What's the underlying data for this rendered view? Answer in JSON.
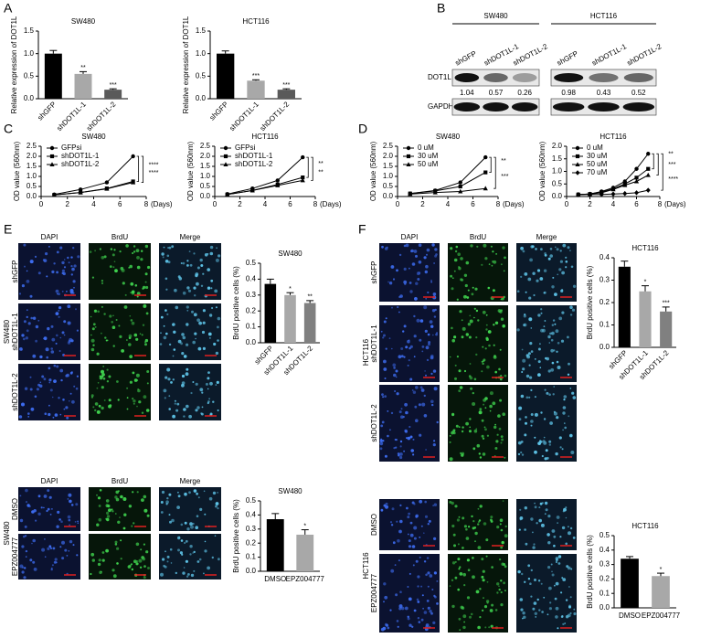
{
  "panels": [
    "A",
    "B",
    "C",
    "D",
    "E",
    "F"
  ],
  "chart_data": [
    {
      "type": "bar",
      "title": "SW480",
      "ylabel": "Relative expression of DOT1L",
      "categories": [
        "shGFP",
        "shDOT1L-1",
        "shDOT1L-2"
      ],
      "values": [
        1.0,
        0.55,
        0.2
      ],
      "errors": [
        0.07,
        0.05,
        0.02
      ],
      "colors": [
        "#000000",
        "#a8a8a8",
        "#5a5a5a"
      ],
      "annotations": [
        null,
        "**",
        "***"
      ],
      "ylim": [
        0,
        1.5
      ],
      "yticks": [
        {
          "value": 0,
          "label": "0.0"
        },
        0.5,
        {
          "value": 1,
          "label": "1.0"
        },
        1.5
      ]
    },
    {
      "type": "bar",
      "title": "HCT116",
      "ylabel": "Relative expression of DOT1L",
      "categories": [
        "shGFP",
        "shDOT1L-1",
        "shDOT1L-2"
      ],
      "values": [
        1.0,
        0.4,
        0.2
      ],
      "errors": [
        0.06,
        0.02,
        0.02
      ],
      "colors": [
        "#000000",
        "#a8a8a8",
        "#5a5a5a"
      ],
      "annotations": [
        null,
        "***",
        "***"
      ],
      "ylim": [
        0,
        1.5
      ],
      "yticks": [
        {
          "value": 0,
          "label": "0.0"
        },
        0.5,
        {
          "value": 1,
          "label": "1.0"
        },
        1.5
      ]
    },
    {
      "type": "line",
      "title": "SW480",
      "ylabel": "OD value (560nm)",
      "xlabel": "(Days)",
      "x": [
        1,
        3,
        5,
        7
      ],
      "xlim": [
        0,
        8
      ],
      "xticks": [
        0,
        2,
        4,
        6,
        8
      ],
      "ylim": [
        0,
        2.5
      ],
      "yticks": [
        {
          "value": 0,
          "label": "0.0"
        },
        0.5,
        {
          "value": 1,
          "label": "1.0"
        },
        1.5,
        {
          "value": 2,
          "label": "2.0"
        },
        2.5
      ],
      "series": [
        {
          "name": "GFPsi",
          "color": "#000000",
          "marker": "circle",
          "values": [
            0.1,
            0.35,
            0.7,
            2.0
          ]
        },
        {
          "name": "shDOT1L-1",
          "color": "#000000",
          "marker": "square",
          "values": [
            0.08,
            0.2,
            0.4,
            0.75
          ]
        },
        {
          "name": "shDOT1L-2",
          "color": "#000000",
          "marker": "triangle",
          "values": [
            0.08,
            0.2,
            0.38,
            0.7
          ]
        }
      ],
      "significance": [
        "****",
        "****"
      ]
    },
    {
      "type": "line",
      "title": "HCT116",
      "ylabel": "OD value (560nm)",
      "xlabel": "(Days)",
      "x": [
        1,
        3,
        5,
        7
      ],
      "xlim": [
        0,
        8
      ],
      "xticks": [
        0,
        2,
        4,
        6,
        8
      ],
      "ylim": [
        0,
        2.5
      ],
      "yticks": [
        {
          "value": 0,
          "label": "0.0"
        },
        0.5,
        {
          "value": 1,
          "label": "1.0"
        },
        1.5,
        {
          "value": 2,
          "label": "2.0"
        },
        2.5
      ],
      "series": [
        {
          "name": "GFPsi",
          "color": "#000000",
          "marker": "circle",
          "values": [
            0.12,
            0.4,
            0.8,
            1.95
          ]
        },
        {
          "name": "shDOT1L-1",
          "color": "#000000",
          "marker": "square",
          "values": [
            0.1,
            0.3,
            0.6,
            0.95
          ]
        },
        {
          "name": "shDOT1L-2",
          "color": "#000000",
          "marker": "triangle",
          "values": [
            0.1,
            0.3,
            0.55,
            0.8
          ]
        }
      ],
      "significance": [
        "**",
        "**"
      ]
    },
    {
      "type": "line",
      "title": "SW480",
      "ylabel": "OD value (560nm)",
      "xlabel": "(Days)",
      "x": [
        1,
        3,
        5,
        7
      ],
      "xlim": [
        0,
        8
      ],
      "xticks": [
        0,
        2,
        4,
        6,
        8
      ],
      "ylim": [
        0,
        2.5
      ],
      "yticks": [
        {
          "value": 0,
          "label": "0.0"
        },
        0.5,
        {
          "value": 1,
          "label": "1.0"
        },
        1.5,
        {
          "value": 2,
          "label": "2.0"
        },
        2.5
      ],
      "series": [
        {
          "name": "0 uM",
          "color": "#000000",
          "marker": "circle",
          "values": [
            0.15,
            0.3,
            0.7,
            1.95
          ]
        },
        {
          "name": "30 uM",
          "color": "#000000",
          "marker": "square",
          "values": [
            0.15,
            0.28,
            0.5,
            1.2
          ]
        },
        {
          "name": "50 uM",
          "color": "#000000",
          "marker": "triangle",
          "values": [
            0.12,
            0.2,
            0.25,
            0.4
          ]
        }
      ],
      "significance": [
        "**",
        "***"
      ]
    },
    {
      "type": "line",
      "title": "HCT116",
      "ylabel": "OD value (560nm)",
      "xlabel": "(Days)",
      "x": [
        1,
        2,
        3,
        4,
        5,
        6,
        7
      ],
      "xlim": [
        0,
        8
      ],
      "xticks": [
        0,
        2,
        4,
        6,
        8
      ],
      "ylim": [
        0,
        2.0
      ],
      "yticks": [
        {
          "value": 0,
          "label": "0.0"
        },
        0.5,
        {
          "value": 1,
          "label": "1.0"
        },
        1.5,
        {
          "value": 2,
          "label": "2.0"
        }
      ],
      "series": [
        {
          "name": "0 uM",
          "color": "#000000",
          "marker": "circle",
          "values": [
            0.08,
            0.1,
            0.2,
            0.35,
            0.6,
            1.1,
            1.7
          ]
        },
        {
          "name": "30 uM",
          "color": "#000000",
          "marker": "square",
          "values": [
            0.08,
            0.1,
            0.18,
            0.3,
            0.5,
            0.75,
            1.1
          ]
        },
        {
          "name": "50 uM",
          "color": "#000000",
          "marker": "triangle",
          "values": [
            0.08,
            0.1,
            0.15,
            0.28,
            0.45,
            0.6,
            0.85
          ]
        },
        {
          "name": "70 uM",
          "color": "#000000",
          "marker": "diamond",
          "values": [
            0.07,
            0.08,
            0.08,
            0.1,
            0.12,
            0.15,
            0.25
          ]
        }
      ],
      "significance": [
        "**",
        "***",
        "****"
      ]
    },
    {
      "type": "bar",
      "title": "SW480",
      "ylabel": "BrdU positive cells (%)",
      "categories": [
        "shGFP",
        "shDOT1L-1",
        "shDOT1L-2"
      ],
      "values": [
        0.37,
        0.3,
        0.25
      ],
      "errors": [
        0.03,
        0.015,
        0.015
      ],
      "colors": [
        "#000000",
        "#a8a8a8",
        "#808080"
      ],
      "annotations": [
        null,
        "*",
        "**"
      ],
      "ylim": [
        0,
        0.5
      ],
      "yticks": [
        {
          "value": 0,
          "label": "0.0"
        },
        0.1,
        0.2,
        0.3,
        0.4,
        0.5
      ]
    },
    {
      "type": "bar",
      "title": "SW480",
      "ylabel": "BrdU positive cells (%)",
      "categories": [
        "DMSO",
        "EPZ004777"
      ],
      "values": [
        0.37,
        0.26
      ],
      "errors": [
        0.04,
        0.035
      ],
      "colors": [
        "#000000",
        "#a8a8a8"
      ],
      "annotations": [
        null,
        "*"
      ],
      "ylim": [
        0,
        0.5
      ],
      "yticks": [
        {
          "value": 0,
          "label": "0.0"
        },
        0.1,
        0.2,
        0.3,
        0.4,
        0.5
      ]
    },
    {
      "type": "bar",
      "title": "HCT116",
      "ylabel": "BrdU positive cells (%)",
      "categories": [
        "shGFP",
        "shDOT1L-1",
        "shDOT1L-2"
      ],
      "values": [
        0.36,
        0.25,
        0.16
      ],
      "errors": [
        0.025,
        0.025,
        0.02
      ],
      "colors": [
        "#000000",
        "#a8a8a8",
        "#808080"
      ],
      "annotations": [
        null,
        "*",
        "***"
      ],
      "ylim": [
        0,
        0.4
      ],
      "yticks": [
        {
          "value": 0,
          "label": "0.0"
        },
        0.1,
        0.2,
        0.3,
        0.4
      ]
    },
    {
      "type": "bar",
      "title": "HCT116",
      "ylabel": "BrdU positive cells (%)",
      "categories": [
        "DMSO",
        "EPZ004777"
      ],
      "values": [
        0.34,
        0.22
      ],
      "errors": [
        0.015,
        0.02
      ],
      "colors": [
        "#000000",
        "#a8a8a8"
      ],
      "annotations": [
        null,
        "*"
      ],
      "ylim": [
        0,
        0.5
      ],
      "yticks": [
        {
          "value": 0,
          "label": "0.0"
        },
        0.1,
        0.2,
        0.3,
        0.4,
        0.5
      ]
    }
  ],
  "blot": {
    "proteins": [
      "DOT1L",
      "GAPDH"
    ],
    "cell_lines": [
      {
        "name": "SW480",
        "lanes": [
          "shGFP",
          "shDOT1L-1",
          "shDOT1L-2"
        ],
        "quantities": [
          1.04,
          0.57,
          0.26
        ]
      },
      {
        "name": "HCT116",
        "lanes": [
          "shGFP",
          "shDOT1L-1",
          "shDOT1L-2"
        ],
        "quantities": [
          0.98,
          0.43,
          0.52
        ]
      }
    ]
  },
  "micrographs": [
    {
      "channels": [
        "DAPI",
        "BrdU",
        "Merge"
      ],
      "cell_line": "SW480",
      "rows": [
        "shGFP",
        "shDOT1L-1",
        "shDOT1L-2"
      ]
    },
    {
      "channels": [
        "DAPI",
        "BrdU",
        "Merge"
      ],
      "cell_line": "SW480",
      "rows": [
        "DMSO",
        "EPZ004777"
      ]
    },
    {
      "channels": [
        "DAPI",
        "BrdU",
        "Merge"
      ],
      "cell_line": "HCT116",
      "rows": [
        "shGFP",
        "shDOT1L-1",
        "shDOT1L-2"
      ]
    },
    {
      "cell_line": "HCT116",
      "rows": [
        "DMSO",
        "EPZ004777"
      ]
    }
  ]
}
